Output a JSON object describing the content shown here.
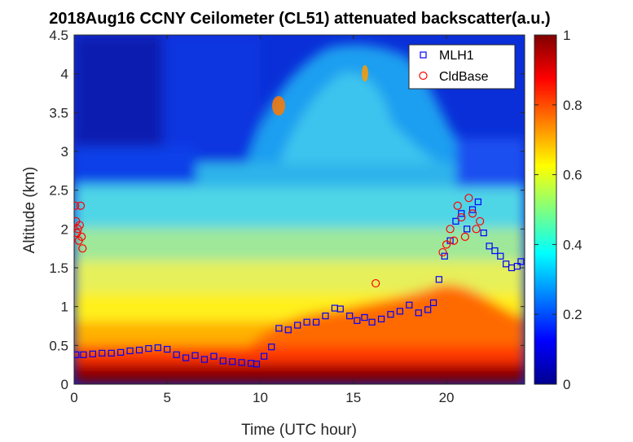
{
  "chart_data": {
    "type": "heatmap",
    "title": "2018Aug16 CCNY Ceilometer (CL51) attenuated backscatter(a.u.)",
    "xlabel": "Time (UTC hour)",
    "ylabel": "Altitude (km)",
    "xlim": [
      0,
      24.2
    ],
    "ylim": [
      0,
      4.5
    ],
    "x_ticks": [
      "0",
      "5",
      "10",
      "15",
      "20"
    ],
    "x_tick_values": [
      0,
      5,
      10,
      15,
      20
    ],
    "y_ticks": [
      "0",
      "0.5",
      "1",
      "1.5",
      "2",
      "2.5",
      "3",
      "3.5",
      "4",
      "4.5"
    ],
    "y_tick_values": [
      0,
      0.5,
      1,
      1.5,
      2,
      2.5,
      3,
      3.5,
      4,
      4.5
    ],
    "colorbar": {
      "colormap": "jet",
      "range": [
        0,
        1
      ],
      "ticks": [
        "0",
        "0.2",
        "0.4",
        "0.6",
        "0.8",
        "1"
      ],
      "tick_values": [
        0,
        0.2,
        0.4,
        0.6,
        0.8,
        1
      ]
    },
    "legend": {
      "placement": "top-right",
      "entries": [
        {
          "label": "MLH1",
          "marker": "square",
          "color": "#0000ff"
        },
        {
          "label": "CldBase",
          "marker": "circle",
          "color": "#ff0000"
        }
      ]
    },
    "series": [
      {
        "name": "MLH1",
        "marker": "square",
        "color": "#0000ff",
        "x": [
          0.1,
          0.5,
          1,
          1.5,
          2,
          2.5,
          3,
          3.5,
          4,
          4.5,
          5,
          5.5,
          6,
          6.5,
          7,
          7.5,
          8,
          8.5,
          9,
          9.5,
          9.8,
          10.2,
          10.6,
          11,
          11.5,
          12,
          12.5,
          13,
          13.5,
          14,
          14.3,
          14.8,
          15.2,
          15.6,
          16,
          16.5,
          17,
          17.5,
          18,
          18.5,
          19,
          19.3,
          19.6,
          19.9,
          20.2,
          20.5,
          20.8,
          21.1,
          21.4,
          21.7,
          22,
          22.3,
          22.6,
          22.9,
          23.2,
          23.5,
          23.8,
          24.0
        ],
        "y": [
          0.38,
          0.38,
          0.39,
          0.4,
          0.4,
          0.41,
          0.43,
          0.44,
          0.46,
          0.47,
          0.45,
          0.38,
          0.34,
          0.37,
          0.32,
          0.36,
          0.3,
          0.29,
          0.28,
          0.27,
          0.26,
          0.36,
          0.48,
          0.72,
          0.7,
          0.76,
          0.8,
          0.8,
          0.88,
          0.98,
          0.97,
          0.88,
          0.82,
          0.86,
          0.8,
          0.84,
          0.9,
          0.94,
          1.02,
          0.92,
          0.96,
          1.05,
          1.35,
          1.65,
          1.85,
          2.1,
          2.2,
          2.0,
          2.25,
          2.35,
          1.95,
          1.78,
          1.72,
          1.65,
          1.55,
          1.5,
          1.52,
          1.58
        ]
      },
      {
        "name": "CldBase",
        "marker": "circle",
        "color": "#ff0000",
        "x": [
          0.05,
          0.1,
          0.15,
          0.2,
          0.25,
          0.3,
          0.35,
          0.4,
          0.45,
          16.2,
          19.8,
          20.0,
          20.2,
          20.4,
          20.6,
          20.8,
          21.0,
          21.2,
          21.4,
          21.6,
          21.8
        ],
        "y": [
          2.3,
          2.1,
          1.95,
          2.0,
          1.85,
          2.05,
          2.3,
          1.9,
          1.75,
          1.3,
          1.7,
          1.8,
          2.0,
          1.85,
          2.3,
          2.15,
          1.9,
          2.4,
          2.2,
          2.0,
          2.1
        ]
      }
    ]
  }
}
